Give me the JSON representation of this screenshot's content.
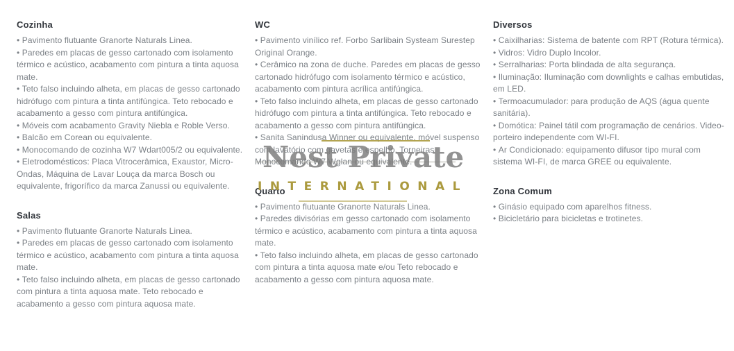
{
  "page": {
    "background": "#ffffff"
  },
  "colors": {
    "section_title": "#32363c",
    "body_text": "#7b8086",
    "watermark_gold": "#ab9a3e",
    "watermark_gray": "#7a7a7a"
  },
  "list_style": {
    "bullet_char": "•"
  },
  "watermark": {
    "name": "Nest Private",
    "subtitle": "INTERNATIONAL"
  },
  "columns": [
    {
      "sections": [
        {
          "title": "Cozinha",
          "bullets": [
            "Pavimento flutuante Granorte Naturals Linea.",
            "Paredes em placas de gesso cartonado com isolamento térmico e acústico, acabamento com pintura a tinta aquosa mate.",
            "Teto falso incluindo alheta, em placas de gesso cartonado hidrófugo com pintura a tinta antifúngica. Teto rebocado e acabamento a gesso com pintura antifúngica.",
            "Móveis com acabamento Gravity Niebla e Roble Verso.",
            "Balcão em Corean ou equivalente.",
            "Monocomando de cozinha W7 Wdart005/2 ou equivalente.",
            "Eletrodomésticos: Placa Vitrocerâmica, Exaustor, Micro-Ondas, Máquina de Lavar Louça da marca Bosch ou equivalente, frigorífico da marca Zanussi ou equivalente."
          ]
        },
        {
          "title": "Salas",
          "bullets": [
            "Pavimento flutuante Granorte Naturals Linea.",
            "Paredes em placas de gesso cartonado com isolamento térmico e acústico, acabamento com pintura a tinta aquosa mate.",
            "Teto falso incluindo alheta, em placas de gesso cartonado com pintura a tinta aquosa mate. Teto rebocado e acabamento a gesso com pintura aquosa mate."
          ]
        }
      ]
    },
    {
      "sections": [
        {
          "title": "WC",
          "bullets": [
            "Pavimento vinílico ref. Forbo Sarlibain Systeam Surestep Original Orange.",
            "Cerâmico na zona de duche. Paredes em placas de gesso cartonado hidrófugo com isolamento térmico e acústico, acabamento com pintura acrílica antifúngica.",
            "Teto falso incluindo alheta, em placas de gesso cartonado hidrófugo com pintura a tinta antifúngica. Teto rebocado e acabamento a gesso com pintura antifúngica.",
            "Sanita Sanindusa Winner ou equivalente, móvel suspenso com lavatório com gavetas e espelho. Torneiras Monocomando W7 Wglan ou equivalente."
          ]
        },
        {
          "title": "Quarto",
          "bullets": [
            "Pavimento flutuante Granorte Naturals Linea.",
            "Paredes divisórias em gesso cartonado com isolamento térmico e acústico, acabamento com pintura a tinta aquosa mate.",
            "Teto falso incluindo alheta, em placas de gesso cartonado com pintura a tinta aquosa mate e/ou Teto rebocado e acabamento a gesso com pintura aquosa mate."
          ]
        }
      ]
    },
    {
      "sections": [
        {
          "title": "Diversos",
          "bullets": [
            "Caixilharias: Sistema de batente com RPT (Rotura térmica).",
            "Vidros: Vidro Duplo Incolor.",
            "Serralharias: Porta blindada de alta segurança.",
            "Iluminação: Iluminação com downlights e calhas embutidas, em LED.",
            "Termoacumulador: para produção de AQS (água quente sanitária).",
            "Domótica: Painel tátil com programação de cenários. Video-porteiro independente com WI-FI.",
            "Ar Condicionado: equipamento difusor tipo mural com sistema WI-FI, de marca GREE ou equivalente."
          ]
        },
        {
          "title": "Zona Comum",
          "bullets": [
            "Ginásio equipado com aparelhos fitness.",
            "Bicicletário para bicicletas e trotinetes."
          ]
        }
      ]
    }
  ]
}
